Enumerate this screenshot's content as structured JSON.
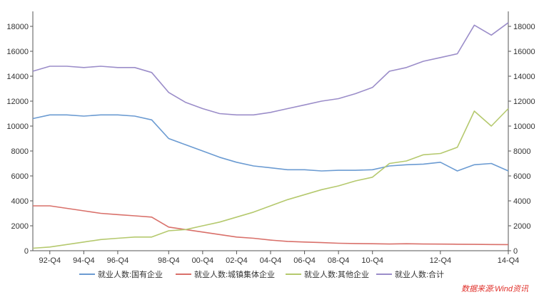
{
  "chart_data": {
    "type": "line",
    "x": [
      "91-Q4",
      "92-Q4",
      "93-Q4",
      "94-Q4",
      "95-Q4",
      "96-Q4",
      "97-Q4",
      "98-Q2",
      "98-Q4",
      "99-Q4",
      "00-Q4",
      "01-Q4",
      "02-Q4",
      "03-Q4",
      "04-Q4",
      "05-Q4",
      "06-Q4",
      "07-Q4",
      "08-Q4",
      "09-Q4",
      "10-Q4",
      "11-Q2",
      "11-Q4",
      "12-Q2",
      "12-Q4",
      "13-Q2",
      "13-Q4",
      "14-Q2",
      "14-Q4"
    ],
    "x_ticks": [
      "92-Q4",
      "94-Q4",
      "96-Q4",
      "98-Q4",
      "00-Q4",
      "02-Q4",
      "04-Q4",
      "06-Q4",
      "08-Q4",
      "10-Q4",
      "12-Q4",
      "14-Q4"
    ],
    "y_ticks": [
      0,
      2000,
      4000,
      6000,
      8000,
      10000,
      12000,
      14000,
      16000,
      18000
    ],
    "ylim": [
      0,
      19200
    ],
    "legend_position": "bottom",
    "series": [
      {
        "name": "就业人数:国有企业",
        "color": "#6b9bd2",
        "values": [
          10600,
          10900,
          10900,
          10800,
          10900,
          10900,
          10800,
          10500,
          9000,
          8500,
          8000,
          7500,
          7100,
          6800,
          6650,
          6500,
          6500,
          6400,
          6450,
          6450,
          6500,
          6800,
          6900,
          6950,
          7100,
          6400,
          6900,
          7000,
          6400
        ]
      },
      {
        "name": "就业人数:城镇集体企业",
        "color": "#d9706a",
        "values": [
          3600,
          3600,
          3400,
          3200,
          3000,
          2900,
          2800,
          2700,
          1900,
          1700,
          1500,
          1300,
          1100,
          1000,
          850,
          750,
          700,
          650,
          600,
          580,
          560,
          540,
          560,
          540,
          530,
          520,
          510,
          500,
          490
        ]
      },
      {
        "name": "就业人数:其他企业",
        "color": "#b5c96e",
        "values": [
          200,
          300,
          500,
          700,
          900,
          1000,
          1100,
          1100,
          1600,
          1700,
          2000,
          2300,
          2700,
          3100,
          3600,
          4100,
          4500,
          4900,
          5200,
          5600,
          5900,
          7000,
          7200,
          7700,
          7800,
          8300,
          11200,
          10000,
          11400
        ]
      },
      {
        "name": "就业人数:合计",
        "color": "#9b8dc9",
        "values": [
          14400,
          14800,
          14800,
          14700,
          14800,
          14700,
          14700,
          14300,
          12700,
          11900,
          11400,
          11000,
          10900,
          10900,
          11100,
          11400,
          11700,
          12000,
          12200,
          12600,
          13100,
          14400,
          14700,
          15200,
          15500,
          15800,
          18100,
          17300,
          18300
        ]
      }
    ]
  },
  "source_note": "数据来源:Wind资讯"
}
